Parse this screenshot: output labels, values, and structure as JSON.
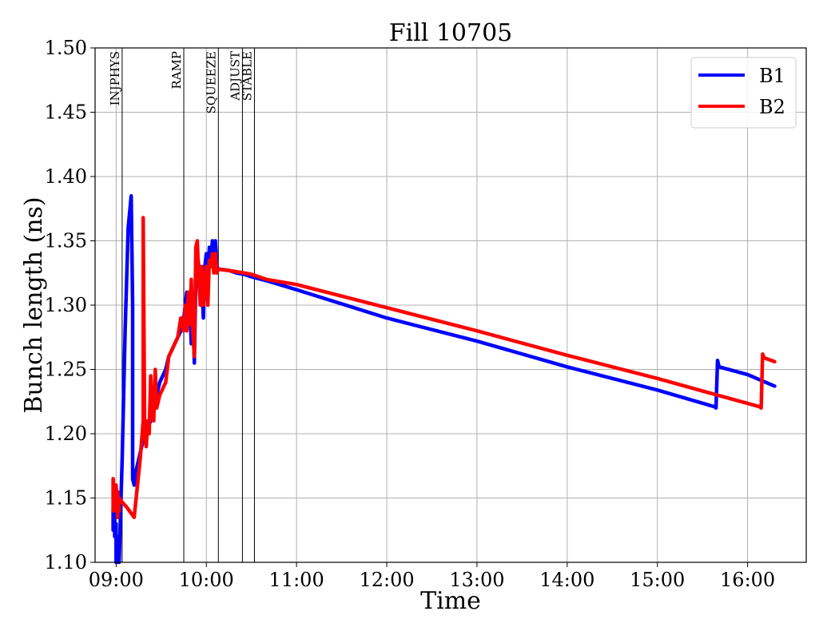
{
  "chart_data": {
    "type": "line",
    "title": "Fill 10705",
    "xlabel": "Time",
    "ylabel": "Bunch length (ns)",
    "xlim": [
      "08:46",
      "16:39"
    ],
    "ylim": [
      1.1,
      1.5
    ],
    "grid": true,
    "legend_position": "top-right",
    "x_ticks": [
      "09:00",
      "10:00",
      "11:00",
      "12:00",
      "13:00",
      "14:00",
      "15:00",
      "16:00"
    ],
    "y_ticks": [
      "1.10",
      "1.15",
      "1.20",
      "1.25",
      "1.30",
      "1.35",
      "1.40",
      "1.45",
      "1.50"
    ],
    "phases": [
      {
        "label": "INJPHYS",
        "time": "09:04"
      },
      {
        "label": "RAMP",
        "time": "09:45"
      },
      {
        "label": "SQUEEZE",
        "time": "10:08"
      },
      {
        "label": "ADJUST",
        "time": "10:24"
      },
      {
        "label": "STABLE",
        "time": "10:32"
      }
    ],
    "series": [
      {
        "name": "B1",
        "color": "#0000ff",
        "points": [
          [
            "08:58",
            1.14
          ],
          [
            "08:58",
            1.125
          ],
          [
            "08:59",
            1.14
          ],
          [
            "08:59",
            1.12
          ],
          [
            "09:00",
            1.13
          ],
          [
            "09:00",
            1.1
          ],
          [
            "09:01",
            1.12
          ],
          [
            "09:01",
            1.1
          ],
          [
            "09:02",
            1.11
          ],
          [
            "09:02",
            1.1
          ],
          [
            "09:04",
            1.18
          ],
          [
            "09:06",
            1.28
          ],
          [
            "09:08",
            1.36
          ],
          [
            "09:10",
            1.385
          ],
          [
            "09:11",
            1.3
          ],
          [
            "09:11",
            1.165
          ],
          [
            "09:12",
            1.16
          ],
          [
            "09:13",
            1.17
          ],
          [
            "09:15",
            1.18
          ],
          [
            "09:17",
            1.19
          ],
          [
            "09:19",
            1.2
          ],
          [
            "09:21",
            1.205
          ],
          [
            "09:23",
            1.21
          ],
          [
            "09:25",
            1.22
          ],
          [
            "09:27",
            1.23
          ],
          [
            "09:29",
            1.24
          ],
          [
            "09:31",
            1.245
          ],
          [
            "09:33",
            1.25
          ],
          [
            "09:35",
            1.26
          ],
          [
            "09:37",
            1.265
          ],
          [
            "09:39",
            1.27
          ],
          [
            "09:41",
            1.275
          ],
          [
            "09:43",
            1.28
          ],
          [
            "09:45",
            1.29
          ],
          [
            "09:46",
            1.3
          ],
          [
            "09:47",
            1.31
          ],
          [
            "09:48",
            1.29
          ],
          [
            "09:49",
            1.3
          ],
          [
            "09:50",
            1.27
          ],
          [
            "09:51",
            1.3
          ],
          [
            "09:52",
            1.255
          ],
          [
            "09:53",
            1.32
          ],
          [
            "09:54",
            1.34
          ],
          [
            "09:55",
            1.33
          ],
          [
            "09:56",
            1.31
          ],
          [
            "09:57",
            1.32
          ],
          [
            "09:58",
            1.29
          ],
          [
            "09:59",
            1.33
          ],
          [
            "10:00",
            1.34
          ],
          [
            "10:01",
            1.32
          ],
          [
            "10:02",
            1.345
          ],
          [
            "10:03",
            1.33
          ],
          [
            "10:04",
            1.35
          ],
          [
            "10:05",
            1.33
          ],
          [
            "10:06",
            1.35
          ],
          [
            "10:07",
            1.33
          ],
          [
            "10:08",
            1.328
          ],
          [
            "10:15",
            1.327
          ],
          [
            "10:20",
            1.325
          ],
          [
            "10:25",
            1.324
          ],
          [
            "10:30",
            1.322
          ],
          [
            "10:40",
            1.319
          ],
          [
            "11:00",
            1.312
          ],
          [
            "12:00",
            1.29
          ],
          [
            "13:00",
            1.272
          ],
          [
            "14:00",
            1.252
          ],
          [
            "15:00",
            1.234
          ],
          [
            "15:38",
            1.221
          ],
          [
            "15:39",
            1.22
          ],
          [
            "15:40",
            1.257
          ],
          [
            "15:41",
            1.252
          ],
          [
            "16:00",
            1.246
          ],
          [
            "16:18",
            1.237
          ]
        ]
      },
      {
        "name": "B2",
        "color": "#ff0000",
        "points": [
          [
            "08:58",
            1.14
          ],
          [
            "08:58",
            1.165
          ],
          [
            "08:59",
            1.145
          ],
          [
            "08:59",
            1.16
          ],
          [
            "09:00",
            1.14
          ],
          [
            "09:00",
            1.16
          ],
          [
            "09:01",
            1.135
          ],
          [
            "09:01",
            1.155
          ],
          [
            "09:02",
            1.14
          ],
          [
            "09:02",
            1.15
          ],
          [
            "09:03",
            1.148
          ],
          [
            "09:07",
            1.143
          ],
          [
            "09:12",
            1.135
          ],
          [
            "09:16",
            1.18
          ],
          [
            "09:18",
            1.21
          ],
          [
            "09:18",
            1.368
          ],
          [
            "09:19",
            1.2
          ],
          [
            "09:20",
            1.19
          ],
          [
            "09:21",
            1.21
          ],
          [
            "09:22",
            1.2
          ],
          [
            "09:23",
            1.245
          ],
          [
            "09:24",
            1.22
          ],
          [
            "09:25",
            1.21
          ],
          [
            "09:26",
            1.25
          ],
          [
            "09:27",
            1.22
          ],
          [
            "09:29",
            1.23
          ],
          [
            "09:31",
            1.235
          ],
          [
            "09:33",
            1.24
          ],
          [
            "09:35",
            1.26
          ],
          [
            "09:37",
            1.265
          ],
          [
            "09:39",
            1.27
          ],
          [
            "09:41",
            1.275
          ],
          [
            "09:43",
            1.29
          ],
          [
            "09:45",
            1.28
          ],
          [
            "09:46",
            1.3
          ],
          [
            "09:47",
            1.28
          ],
          [
            "09:48",
            1.31
          ],
          [
            "09:49",
            1.285
          ],
          [
            "09:50",
            1.32
          ],
          [
            "09:51",
            1.28
          ],
          [
            "09:52",
            1.26
          ],
          [
            "09:53",
            1.345
          ],
          [
            "09:54",
            1.35
          ],
          [
            "09:55",
            1.32
          ],
          [
            "09:56",
            1.3
          ],
          [
            "09:57",
            1.33
          ],
          [
            "09:58",
            1.3
          ],
          [
            "09:59",
            1.32
          ],
          [
            "10:00",
            1.33
          ],
          [
            "10:01",
            1.3
          ],
          [
            "10:02",
            1.335
          ],
          [
            "10:03",
            1.33
          ],
          [
            "10:04",
            1.34
          ],
          [
            "10:05",
            1.325
          ],
          [
            "10:06",
            1.34
          ],
          [
            "10:07",
            1.325
          ],
          [
            "10:08",
            1.328
          ],
          [
            "10:20",
            1.326
          ],
          [
            "10:30",
            1.324
          ],
          [
            "10:40",
            1.32
          ],
          [
            "11:00",
            1.316
          ],
          [
            "12:00",
            1.298
          ],
          [
            "13:00",
            1.28
          ],
          [
            "14:00",
            1.261
          ],
          [
            "15:00",
            1.243
          ],
          [
            "15:40",
            1.23
          ],
          [
            "16:08",
            1.221
          ],
          [
            "16:09",
            1.22
          ],
          [
            "16:10",
            1.262
          ],
          [
            "16:11",
            1.259
          ],
          [
            "16:18",
            1.256
          ]
        ]
      }
    ]
  }
}
